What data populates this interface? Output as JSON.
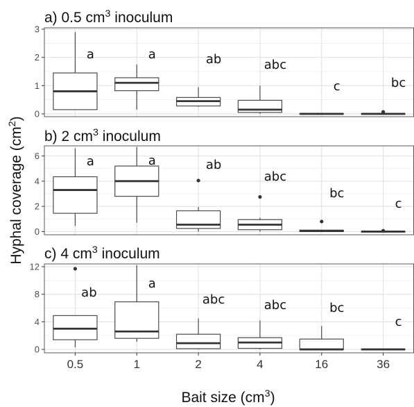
{
  "chart_data": {
    "type": "boxplot",
    "x_label": "Bait size (cm",
    "x_label_sup": "3",
    "x_label_close": ")",
    "y_label": "Hyphal coverage (cm",
    "y_label_sup": "2",
    "y_label_close": ")",
    "categories": [
      "0.5",
      "1",
      "2",
      "4",
      "16",
      "36"
    ],
    "colors": {
      "box_edge": "#4a4a4a",
      "median": "#333333",
      "grid_major": "#e3e3e3",
      "grid_minor": "#f1f1f1",
      "frame": "#555555",
      "outlier": "#333333"
    },
    "panels": [
      {
        "title": "a) 0.5 cm",
        "title_sup": "3",
        "title_suffix": " inoculum",
        "ylim": [
          -0.1,
          3.05
        ],
        "yticks": [
          0,
          1,
          2,
          3
        ],
        "boxes": [
          {
            "category": "0.5",
            "min": 0.15,
            "q1": 0.15,
            "median": 0.8,
            "q3": 1.45,
            "max": 2.9,
            "outliers": [],
            "letter": "a"
          },
          {
            "category": "1",
            "min": 0.15,
            "q1": 0.82,
            "median": 1.1,
            "q3": 1.28,
            "max": 1.75,
            "outliers": [],
            "letter": "a"
          },
          {
            "category": "2",
            "min": 0.25,
            "q1": 0.28,
            "median": 0.45,
            "q3": 0.58,
            "max": 0.95,
            "outliers": [],
            "letter": "ab"
          },
          {
            "category": "4",
            "min": 0.0,
            "q1": 0.05,
            "median": 0.15,
            "q3": 0.48,
            "max": 1.0,
            "outliers": [],
            "letter": "abc"
          },
          {
            "category": "16",
            "min": 0.0,
            "q1": 0.0,
            "median": 0.0,
            "q3": 0.0,
            "max": 0.0,
            "outliers": [],
            "letter": "c"
          },
          {
            "category": "36",
            "min": 0.0,
            "q1": 0.0,
            "median": 0.0,
            "q3": 0.0,
            "max": 0.0,
            "outliers": [
              0.07
            ],
            "letter": "bc"
          }
        ]
      },
      {
        "title": "b) 2 cm",
        "title_sup": "3",
        "title_suffix": " inoculum",
        "ylim": [
          -0.25,
          6.8
        ],
        "yticks": [
          0,
          2,
          4,
          6
        ],
        "boxes": [
          {
            "category": "0.5",
            "min": 0.45,
            "q1": 1.45,
            "median": 3.3,
            "q3": 4.35,
            "max": 6.6,
            "outliers": [],
            "letter": "a"
          },
          {
            "category": "1",
            "min": 0.7,
            "q1": 2.8,
            "median": 4.0,
            "q3": 5.2,
            "max": 6.7,
            "outliers": [],
            "letter": "a"
          },
          {
            "category": "2",
            "min": 0.0,
            "q1": 0.25,
            "median": 0.55,
            "q3": 1.65,
            "max": 1.95,
            "outliers": [
              4.05
            ],
            "letter": "ab"
          },
          {
            "category": "4",
            "min": 0.0,
            "q1": 0.15,
            "median": 0.55,
            "q3": 0.95,
            "max": 1.1,
            "outliers": [
              2.75
            ],
            "letter": "abc"
          },
          {
            "category": "16",
            "min": 0.0,
            "q1": 0.0,
            "median": 0.05,
            "q3": 0.12,
            "max": 0.12,
            "outliers": [
              0.8
            ],
            "letter": "bc"
          },
          {
            "category": "36",
            "min": 0.0,
            "q1": 0.0,
            "median": 0.0,
            "q3": 0.0,
            "max": 0.0,
            "outliers": [
              0.07
            ],
            "letter": "c"
          }
        ]
      },
      {
        "title": "c) 4 cm",
        "title_sup": "3",
        "title_suffix": " inoculum",
        "ylim": [
          -0.5,
          12.4
        ],
        "yticks": [
          0,
          4,
          8,
          12
        ],
        "boxes": [
          {
            "category": "0.5",
            "min": 0.3,
            "q1": 1.4,
            "median": 3.0,
            "q3": 4.9,
            "max": 4.9,
            "outliers": [
              11.7
            ],
            "letter": "ab"
          },
          {
            "category": "1",
            "min": 1.1,
            "q1": 1.6,
            "median": 2.6,
            "q3": 6.9,
            "max": 12.2,
            "outliers": [],
            "letter": "a"
          },
          {
            "category": "2",
            "min": 0.0,
            "q1": 0.1,
            "median": 0.9,
            "q3": 2.2,
            "max": 4.5,
            "outliers": [],
            "letter": "abc"
          },
          {
            "category": "4",
            "min": 0.0,
            "q1": 0.15,
            "median": 1.0,
            "q3": 1.7,
            "max": 4.2,
            "outliers": [],
            "letter": "abc"
          },
          {
            "category": "16",
            "min": 0.0,
            "q1": 0.0,
            "median": 0.0,
            "q3": 1.5,
            "max": 3.4,
            "outliers": [],
            "letter": "bc"
          },
          {
            "category": "36",
            "min": 0.0,
            "q1": 0.0,
            "median": 0.0,
            "q3": 0.0,
            "max": 0.0,
            "outliers": [],
            "letter": "c"
          }
        ]
      }
    ]
  }
}
